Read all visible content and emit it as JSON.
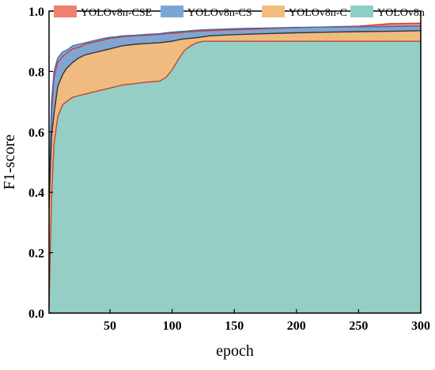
{
  "chart_data": {
    "type": "area",
    "xlabel": "epoch",
    "ylabel": "F1-score",
    "xlim": [
      1,
      300
    ],
    "ylim": [
      0.0,
      1.0
    ],
    "x_ticks": [
      50,
      100,
      150,
      200,
      250,
      300
    ],
    "y_ticks": [
      0.0,
      0.2,
      0.4,
      0.6,
      0.8,
      1.0
    ],
    "x_tick_labels": [
      "50",
      "100",
      "150",
      "200",
      "250",
      "300"
    ],
    "y_tick_labels": [
      "0.0",
      "0.2",
      "0.4",
      "0.6",
      "0.8",
      "1.0"
    ],
    "legend_position": "top",
    "grid": false,
    "x": [
      1,
      3,
      5,
      8,
      10,
      12,
      15,
      20,
      25,
      30,
      35,
      40,
      45,
      50,
      55,
      60,
      70,
      80,
      90,
      95,
      100,
      105,
      110,
      115,
      120,
      125,
      130,
      140,
      150,
      175,
      200,
      225,
      250,
      275,
      300
    ],
    "series": [
      {
        "name": "YOLOv8n-CSE",
        "color": "#ef7f6f",
        "line_color": "#d23a2a",
        "values": [
          0.37,
          0.66,
          0.78,
          0.83,
          0.84,
          0.85,
          0.86,
          0.875,
          0.88,
          0.89,
          0.895,
          0.9,
          0.905,
          0.91,
          0.912,
          0.915,
          0.918,
          0.92,
          0.923,
          0.925,
          0.927,
          0.928,
          0.93,
          0.932,
          0.933,
          0.934,
          0.935,
          0.937,
          0.938,
          0.942,
          0.945,
          0.948,
          0.95,
          0.958,
          0.96
        ]
      },
      {
        "name": "YOLOv8n-CS",
        "color": "#7aa6d6",
        "line_color": "#3f6fb5",
        "values": [
          0.4,
          0.7,
          0.8,
          0.845,
          0.855,
          0.865,
          0.87,
          0.885,
          0.89,
          0.895,
          0.9,
          0.905,
          0.91,
          0.913,
          0.915,
          0.918,
          0.92,
          0.923,
          0.925,
          0.928,
          0.93,
          0.932,
          0.933,
          0.935,
          0.937,
          0.938,
          0.939,
          0.94,
          0.942,
          0.944,
          0.946,
          0.947,
          0.948,
          0.949,
          0.95
        ]
      },
      {
        "name": "YOLOv8n-C",
        "color": "#f4bc7a",
        "line_color": "#333333",
        "values": [
          0.35,
          0.58,
          0.66,
          0.75,
          0.77,
          0.79,
          0.81,
          0.83,
          0.845,
          0.855,
          0.86,
          0.865,
          0.87,
          0.875,
          0.88,
          0.885,
          0.89,
          0.893,
          0.895,
          0.898,
          0.9,
          0.905,
          0.908,
          0.91,
          0.912,
          0.915,
          0.918,
          0.92,
          0.922,
          0.925,
          0.928,
          0.93,
          0.932,
          0.933,
          0.935
        ]
      },
      {
        "name": "YOLOv8n",
        "color": "#8ecfc8",
        "line_color": "#c0453a",
        "values": [
          0.02,
          0.38,
          0.56,
          0.65,
          0.67,
          0.69,
          0.7,
          0.715,
          0.72,
          0.725,
          0.73,
          0.735,
          0.74,
          0.745,
          0.75,
          0.755,
          0.76,
          0.765,
          0.768,
          0.78,
          0.805,
          0.84,
          0.87,
          0.885,
          0.895,
          0.9,
          0.9,
          0.9,
          0.9,
          0.9,
          0.9,
          0.9,
          0.9,
          0.9,
          0.9
        ]
      }
    ]
  }
}
